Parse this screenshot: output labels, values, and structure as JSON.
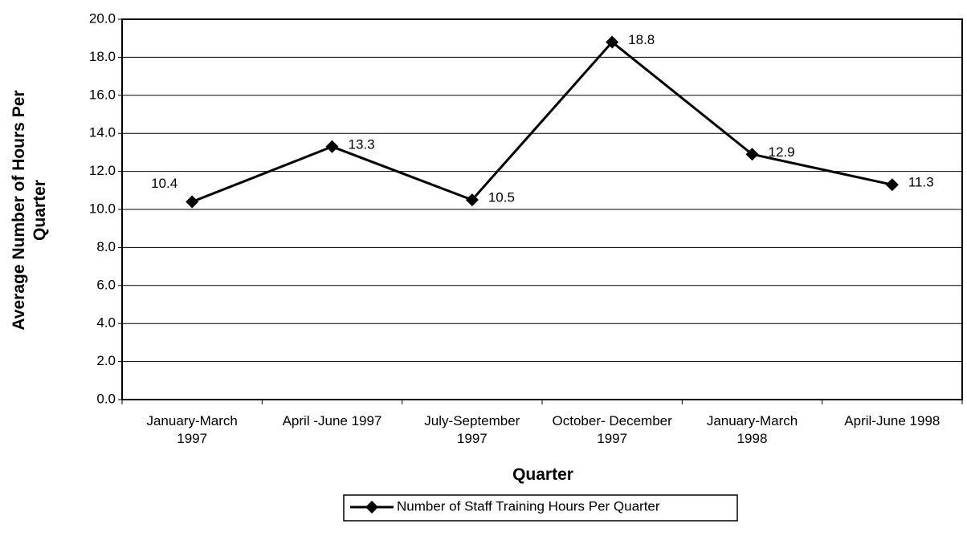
{
  "chart_data": {
    "type": "line",
    "x_label": "Quarter",
    "y_label": "Average Number of Hours Per Quarter",
    "categories": [
      "January-March 1997",
      "April -June 1997",
      "July-September 1997",
      "October- December 1997",
      "January-March 1998",
      "April-June 1998"
    ],
    "series": [
      {
        "name": "Number of Staff Training Hours Per Quarter",
        "color": "#000000",
        "values": [
          10.4,
          13.3,
          10.5,
          18.8,
          12.9,
          11.3
        ]
      }
    ],
    "ylim": [
      0,
      20
    ],
    "yticks": [
      {
        "value": 0,
        "label": "0.0"
      },
      {
        "value": 2,
        "label": "2.0"
      },
      {
        "value": 4,
        "label": "4.0"
      },
      {
        "value": 6,
        "label": "6.0"
      },
      {
        "value": 8,
        "label": "8.0"
      },
      {
        "value": 10,
        "label": "10.0"
      },
      {
        "value": 12,
        "label": "12.0"
      },
      {
        "value": 14,
        "label": "14.0"
      },
      {
        "value": 16,
        "label": "16.0"
      },
      {
        "value": 18,
        "label": "18.0"
      },
      {
        "value": 20,
        "label": "20.0"
      }
    ],
    "grid": true,
    "legend": "bottom"
  }
}
